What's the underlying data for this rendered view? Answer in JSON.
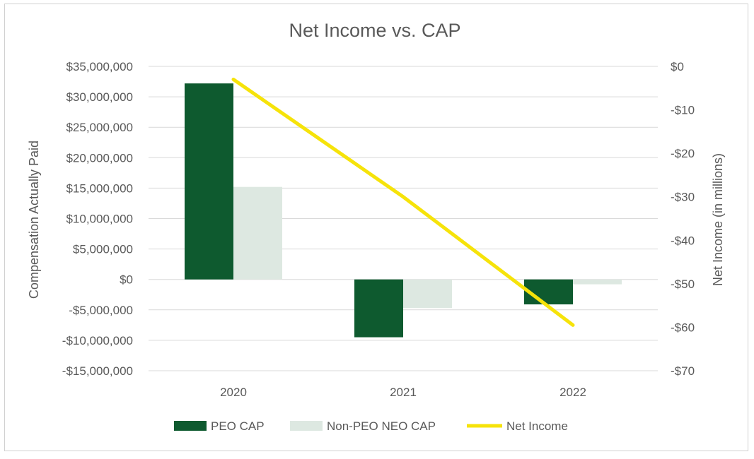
{
  "chart_data": {
    "type": "bar",
    "title": "Net Income vs. CAP",
    "categories": [
      "2020",
      "2021",
      "2022"
    ],
    "ylabel_left": "Compensation Actually Paid",
    "ylabel_right": "Net Income (in millions)",
    "ylim_left": [
      -15000000,
      35000000
    ],
    "ylim_right": [
      -70,
      0
    ],
    "left_ticks": [
      {
        "value": 35000000,
        "label": "$35,000,000"
      },
      {
        "value": 30000000,
        "label": "$30,000,000"
      },
      {
        "value": 25000000,
        "label": "$25,000,000"
      },
      {
        "value": 20000000,
        "label": "$20,000,000"
      },
      {
        "value": 15000000,
        "label": "$15,000,000"
      },
      {
        "value": 10000000,
        "label": "$10,000,000"
      },
      {
        "value": 5000000,
        "label": "$5,000,000"
      },
      {
        "value": 0,
        "label": "$0"
      },
      {
        "value": -5000000,
        "label": "-$5,000,000"
      },
      {
        "value": -10000000,
        "label": "-$10,000,000"
      },
      {
        "value": -15000000,
        "label": "-$15,000,000"
      }
    ],
    "right_ticks": [
      {
        "value": 0,
        "label": "$0"
      },
      {
        "value": -10,
        "label": "-$10"
      },
      {
        "value": -20,
        "label": "-$20"
      },
      {
        "value": -30,
        "label": "-$30"
      },
      {
        "value": -40,
        "label": "-$40"
      },
      {
        "value": -50,
        "label": "-$50"
      },
      {
        "value": -60,
        "label": "-$60"
      },
      {
        "value": -70,
        "label": "-$70"
      }
    ],
    "series": [
      {
        "name": "PEO CAP",
        "type": "bar",
        "axis": "left",
        "color": "#0e5a2f",
        "values": [
          32200000,
          -9500000,
          -4100000
        ]
      },
      {
        "name": "Non-PEO NEO CAP",
        "type": "bar",
        "axis": "left",
        "color": "#dde8e1",
        "values": [
          15200000,
          -4700000,
          -800000
        ]
      },
      {
        "name": "Net Income",
        "type": "line",
        "axis": "right",
        "color": "#f6e30a",
        "values": [
          -3,
          -30,
          -59.5
        ]
      }
    ],
    "grid": true,
    "legend_position": "bottom"
  }
}
